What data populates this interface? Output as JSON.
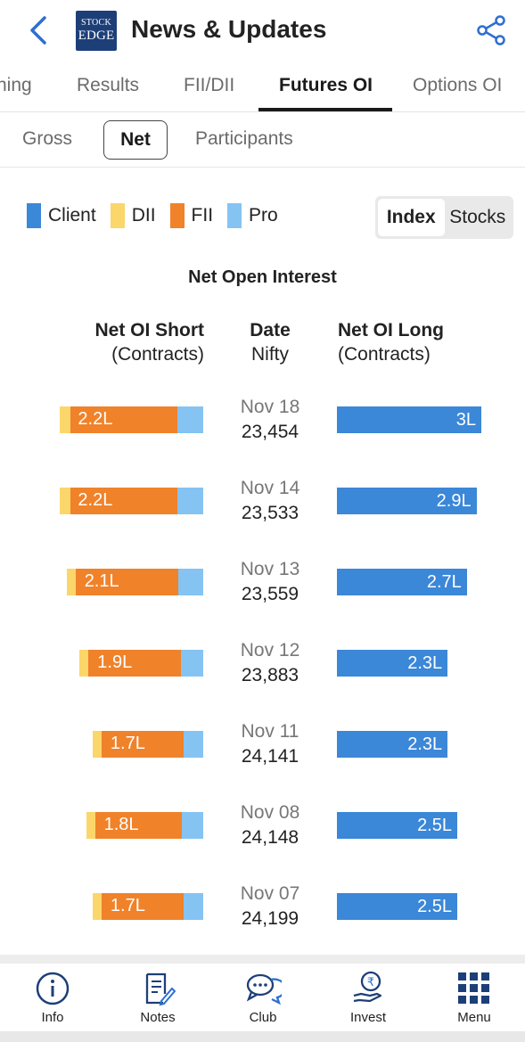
{
  "header": {
    "title": "News & Updates",
    "logo_line1": "STOCK",
    "logo_line2": "EDGE"
  },
  "tabs": [
    {
      "label": "ning",
      "active": false
    },
    {
      "label": "Results",
      "active": false
    },
    {
      "label": "FII/DII",
      "active": false
    },
    {
      "label": "Futures OI",
      "active": true
    },
    {
      "label": "Options OI",
      "active": false
    }
  ],
  "subtabs": [
    {
      "label": "Gross",
      "active": false
    },
    {
      "label": "Net",
      "active": true
    },
    {
      "label": "Participants",
      "active": false
    }
  ],
  "legend": [
    {
      "label": "Client",
      "color": "#3b87d8"
    },
    {
      "label": "DII",
      "color": "#fbd66a"
    },
    {
      "label": "FII",
      "color": "#f0822a"
    },
    {
      "label": "Pro",
      "color": "#85c3f3"
    }
  ],
  "toggle": {
    "index": "Index",
    "stocks": "Stocks",
    "selected": "Index"
  },
  "chart": {
    "title": "Net Open Interest",
    "short_head": "Net OI Short",
    "short_sub": "(Contracts)",
    "date_head": "Date",
    "date_sub": "Nifty",
    "long_head": "Net OI Long",
    "long_sub": "(Contracts)"
  },
  "chart_data": {
    "type": "bar",
    "title": "Net Open Interest",
    "unit": "L",
    "rows": [
      {
        "date": "Nov 18",
        "nifty": "23,454",
        "short_label": "2.2L",
        "long_label": "3L",
        "short_total": 2.2,
        "long": 3.0
      },
      {
        "date": "Nov 14",
        "nifty": "23,533",
        "short_label": "2.2L",
        "long_label": "2.9L",
        "short_total": 2.2,
        "long": 2.9
      },
      {
        "date": "Nov 13",
        "nifty": "23,559",
        "short_label": "2.1L",
        "long_label": "2.7L",
        "short_total": 2.1,
        "long": 2.7
      },
      {
        "date": "Nov 12",
        "nifty": "23,883",
        "short_label": "1.9L",
        "long_label": "2.3L",
        "short_total": 1.9,
        "long": 2.3
      },
      {
        "date": "Nov 11",
        "nifty": "24,141",
        "short_label": "1.7L",
        "long_label": "2.3L",
        "short_total": 1.7,
        "long": 2.3
      },
      {
        "date": "Nov 08",
        "nifty": "24,148",
        "short_label": "1.8L",
        "long_label": "2.5L",
        "short_total": 1.8,
        "long": 2.5
      },
      {
        "date": "Nov 07",
        "nifty": "24,199",
        "short_label": "1.7L",
        "long_label": "2.5L",
        "short_total": 1.7,
        "long": 2.5
      }
    ]
  },
  "nav": [
    {
      "label": "Info",
      "icon": "info-icon"
    },
    {
      "label": "Notes",
      "icon": "notes-icon"
    },
    {
      "label": "Club",
      "icon": "chat-icon"
    },
    {
      "label": "Invest",
      "icon": "rupee-hand-icon"
    },
    {
      "label": "Menu",
      "icon": "grid-menu-icon"
    }
  ]
}
